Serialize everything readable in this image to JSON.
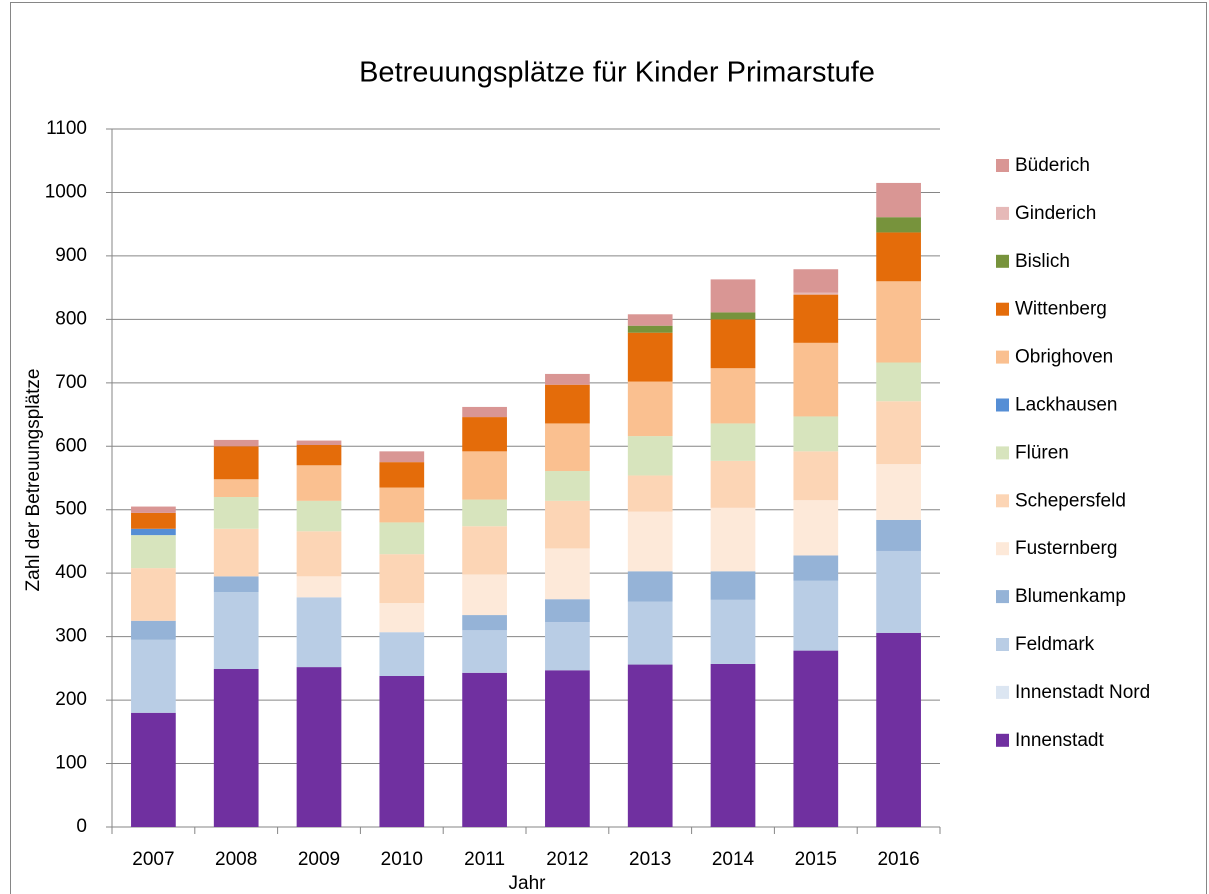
{
  "chart_data": {
    "type": "stacked_bar",
    "title": "Betreuungsplätze für Kinder Primarstufe",
    "x_label": "Jahr",
    "y_label": "Zahl der Betreuungsplätze",
    "categories": [
      "2007",
      "2008",
      "2009",
      "2010",
      "2011",
      "2012",
      "2013",
      "2014",
      "2015",
      "2016"
    ],
    "ylim": [
      0,
      1100
    ],
    "yticks": [
      0,
      100,
      200,
      300,
      400,
      500,
      600,
      700,
      800,
      900,
      1000,
      1100
    ],
    "grid": true,
    "legend": "right",
    "series": [
      {
        "name": "Innenstadt",
        "color": "#7030a0",
        "values": [
          180,
          249,
          252,
          238,
          243,
          247,
          256,
          257,
          278,
          306
        ]
      },
      {
        "name": "Innenstadt Nord",
        "color": "#dce6f2",
        "values": [
          0,
          0,
          0,
          0,
          0,
          0,
          0,
          0,
          0,
          0
        ]
      },
      {
        "name": "Feldmark",
        "color": "#b9cde5",
        "values": [
          115,
          121,
          110,
          69,
          67,
          76,
          99,
          101,
          110,
          129
        ]
      },
      {
        "name": "Blumenkamp",
        "color": "#95b3d7",
        "values": [
          30,
          25,
          0,
          0,
          24,
          36,
          48,
          45,
          40,
          49
        ]
      },
      {
        "name": "Fusternberg",
        "color": "#fde9d9",
        "values": [
          0,
          0,
          33,
          46,
          64,
          80,
          94,
          100,
          87,
          88
        ]
      },
      {
        "name": "Schepersfeld",
        "color": "#fcd5b5",
        "values": [
          83,
          75,
          71,
          77,
          76,
          75,
          57,
          74,
          77,
          99
        ]
      },
      {
        "name": "Flüren",
        "color": "#d7e4bd",
        "values": [
          52,
          50,
          48,
          50,
          42,
          47,
          62,
          59,
          55,
          61
        ]
      },
      {
        "name": "Lackhausen",
        "color": "#558ed5",
        "values": [
          10,
          0,
          0,
          0,
          0,
          0,
          0,
          0,
          0,
          0
        ]
      },
      {
        "name": "Obrighoven",
        "color": "#fac090",
        "values": [
          0,
          28,
          56,
          55,
          76,
          75,
          86,
          87,
          116,
          128
        ]
      },
      {
        "name": "Wittenberg",
        "color": "#e46c0a",
        "values": [
          25,
          52,
          32,
          40,
          54,
          61,
          77,
          77,
          76,
          77
        ]
      },
      {
        "name": "Bislich",
        "color": "#77933c",
        "values": [
          0,
          0,
          0,
          0,
          0,
          0,
          11,
          11,
          0,
          24
        ]
      },
      {
        "name": "Ginderich",
        "color": "#e6b9b8",
        "values": [
          0,
          0,
          0,
          0,
          0,
          0,
          0,
          0,
          3,
          0
        ]
      },
      {
        "name": "Büderich",
        "color": "#d99694",
        "values": [
          10,
          10,
          7,
          17,
          16,
          17,
          18,
          52,
          37,
          54
        ]
      }
    ]
  }
}
